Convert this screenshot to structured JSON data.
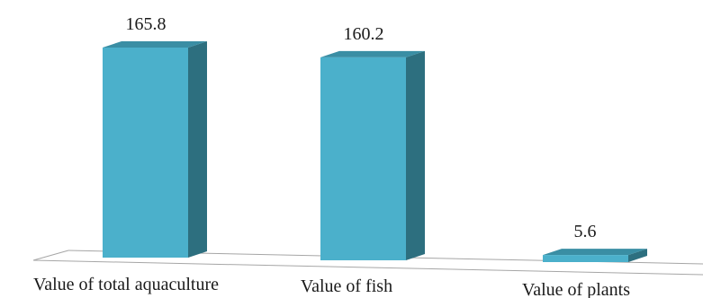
{
  "chart_data": {
    "type": "bar",
    "style": "3d",
    "categories": [
      "Value of total aquaculture",
      "Value of fish",
      "Value of plants"
    ],
    "values": [
      165.8,
      160.2,
      5.6
    ],
    "data_labels": [
      "165.8",
      "160.2",
      "5.6"
    ],
    "title": "",
    "xlabel": "",
    "ylabel": "",
    "ylim": [
      0,
      165.8
    ],
    "grid": false,
    "legend": "none",
    "colors": {
      "bar_front": "#4bb0cb",
      "bar_side": "#2d6f7f",
      "bar_top": "#3a8ea4",
      "floor_line": "#a6a6a6"
    }
  }
}
